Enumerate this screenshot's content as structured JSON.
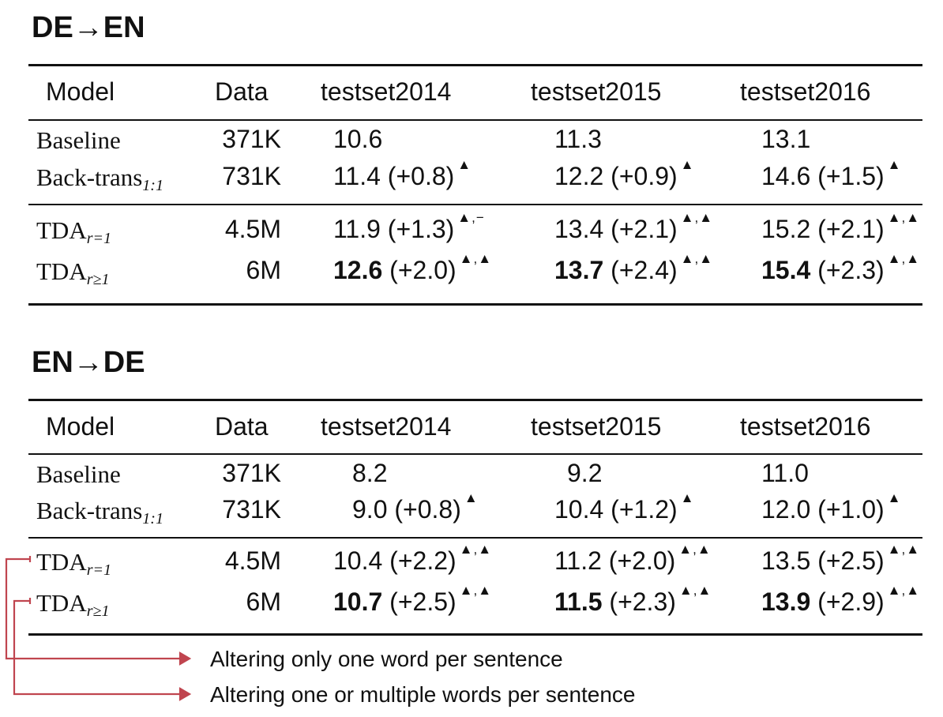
{
  "tables": [
    {
      "title": "DE→EN",
      "headers": [
        "Model",
        "Data",
        "testset2014",
        "testset2015",
        "testset2016"
      ],
      "rows": [
        {
          "model": "Baseline",
          "sub": "",
          "data": "371K",
          "cells": [
            {
              "v": "10.6",
              "d": "",
              "s": "",
              "b": false
            },
            {
              "v": "11.3",
              "d": "",
              "s": "",
              "b": false
            },
            {
              "v": "13.1",
              "d": "",
              "s": "",
              "b": false
            }
          ]
        },
        {
          "model": "Back-trans",
          "sub": "1:1",
          "data": "731K",
          "cells": [
            {
              "v": "11.4",
              "d": " (+0.8)",
              "s": "▲",
              "b": false
            },
            {
              "v": "12.2",
              "d": " (+0.9)",
              "s": "▲",
              "b": false
            },
            {
              "v": "14.6",
              "d": " (+1.5)",
              "s": "▲",
              "b": false
            }
          ]
        },
        {
          "model": "TDA",
          "sub": "r=1",
          "data": "4.5M",
          "cells": [
            {
              "v": "11.9",
              "d": " (+1.3)",
              "s": "▲,−",
              "b": false
            },
            {
              "v": "13.4",
              "d": " (+2.1)",
              "s": "▲,▲",
              "b": false
            },
            {
              "v": "15.2",
              "d": " (+2.1)",
              "s": "▲,▲",
              "b": false
            }
          ]
        },
        {
          "model": "TDA",
          "sub": "r≥1",
          "data": "6M",
          "cells": [
            {
              "v": "12.6",
              "d": " (+2.0)",
              "s": "▲,▲",
              "b": true
            },
            {
              "v": "13.7",
              "d": " (+2.4)",
              "s": "▲,▲",
              "b": true
            },
            {
              "v": "15.4",
              "d": " (+2.3)",
              "s": "▲,▲",
              "b": true
            }
          ]
        }
      ]
    },
    {
      "title": "EN→DE",
      "headers": [
        "Model",
        "Data",
        "testset2014",
        "testset2015",
        "testset2016"
      ],
      "rows": [
        {
          "model": "Baseline",
          "sub": "",
          "data": "371K",
          "cells": [
            {
              "v": "8.2",
              "d": "",
              "s": "",
              "b": false
            },
            {
              "v": "9.2",
              "d": "",
              "s": "",
              "b": false
            },
            {
              "v": "11.0",
              "d": "",
              "s": "",
              "b": false
            }
          ]
        },
        {
          "model": "Back-trans",
          "sub": "1:1",
          "data": "731K",
          "cells": [
            {
              "v": "9.0",
              "d": " (+0.8)",
              "s": "▲",
              "b": false
            },
            {
              "v": "10.4",
              "d": " (+1.2)",
              "s": "▲",
              "b": false
            },
            {
              "v": "12.0",
              "d": " (+1.0)",
              "s": "▲",
              "b": false
            }
          ]
        },
        {
          "model": "TDA",
          "sub": "r=1",
          "data": "4.5M",
          "cells": [
            {
              "v": "10.4",
              "d": " (+2.2)",
              "s": "▲,▲",
              "b": false
            },
            {
              "v": "11.2",
              "d": " (+2.0)",
              "s": "▲,▲",
              "b": false
            },
            {
              "v": "13.5",
              "d": " (+2.5)",
              "s": "▲,▲",
              "b": false
            }
          ]
        },
        {
          "model": "TDA",
          "sub": "r≥1",
          "data": "6M",
          "cells": [
            {
              "v": "10.7",
              "d": " (+2.5)",
              "s": "▲,▲",
              "b": true
            },
            {
              "v": "11.5",
              "d": " (+2.3)",
              "s": "▲,▲",
              "b": true
            },
            {
              "v": "13.9",
              "d": " (+2.9)",
              "s": "▲,▲",
              "b": true
            }
          ]
        }
      ]
    }
  ],
  "annotations": [
    "Altering only one word per sentence",
    "Altering one or multiple words per sentence"
  ],
  "colors": {
    "arrow": "#c0454f",
    "text": "#111111"
  }
}
